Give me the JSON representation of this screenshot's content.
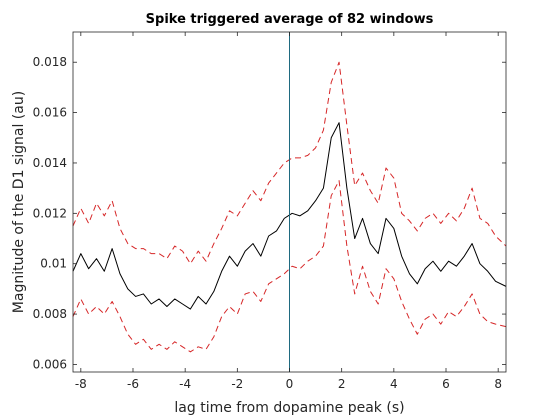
{
  "chart_data": {
    "type": "line",
    "title": "Spike triggered average of 82 windows",
    "xlabel": "lag time from dopamine peak (s)",
    "ylabel": "Magnitude of the D1 signal (au)",
    "xlim": [
      -8.3,
      8.3
    ],
    "ylim": [
      0.0057,
      0.0192
    ],
    "xticks": [
      -8,
      -6,
      -4,
      -2,
      0,
      2,
      4,
      6,
      8
    ],
    "xtick_labels": [
      "-8",
      "-6",
      "-4",
      "-2",
      "0",
      "2",
      "4",
      "6",
      "8"
    ],
    "yticks": [
      0.006,
      0.008,
      0.01,
      0.012,
      0.014,
      0.016,
      0.018
    ],
    "ytick_labels": [
      "0.006",
      "0.008",
      "0.01",
      "0.012",
      "0.014",
      "0.016",
      "0.018"
    ],
    "grid": false,
    "vline": {
      "x": 0,
      "color": "#1f6a80"
    },
    "x": [
      -8.3,
      -8.0,
      -7.7,
      -7.4,
      -7.1,
      -6.8,
      -6.5,
      -6.2,
      -5.9,
      -5.6,
      -5.3,
      -5.0,
      -4.7,
      -4.4,
      -4.1,
      -3.8,
      -3.5,
      -3.2,
      -2.9,
      -2.6,
      -2.3,
      -2.0,
      -1.7,
      -1.4,
      -1.1,
      -0.8,
      -0.5,
      -0.2,
      0.1,
      0.4,
      0.7,
      1.0,
      1.3,
      1.6,
      1.9,
      2.2,
      2.5,
      2.8,
      3.1,
      3.4,
      3.7,
      4.0,
      4.3,
      4.6,
      4.9,
      5.2,
      5.5,
      5.8,
      6.1,
      6.4,
      6.7,
      7.0,
      7.3,
      7.6,
      7.9,
      8.3
    ],
    "series": [
      {
        "style": "solid",
        "color": "#000000",
        "values": [
          0.0097,
          0.0104,
          0.0098,
          0.0102,
          0.0097,
          0.0106,
          0.0096,
          0.009,
          0.0087,
          0.0088,
          0.0084,
          0.0086,
          0.0083,
          0.0086,
          0.0084,
          0.0082,
          0.0087,
          0.0084,
          0.0089,
          0.0097,
          0.0103,
          0.0099,
          0.0105,
          0.0108,
          0.0103,
          0.0111,
          0.0113,
          0.0118,
          0.012,
          0.0119,
          0.0121,
          0.0125,
          0.013,
          0.015,
          0.0156,
          0.013,
          0.011,
          0.0118,
          0.0108,
          0.0104,
          0.0118,
          0.0114,
          0.0103,
          0.0096,
          0.0092,
          0.0098,
          0.0101,
          0.0097,
          0.0101,
          0.0099,
          0.0103,
          0.0108,
          0.01,
          0.0097,
          0.0093,
          0.0091
        ]
      },
      {
        "style": "dashed",
        "color": "#d62728",
        "values": [
          0.0115,
          0.0122,
          0.0116,
          0.0124,
          0.0119,
          0.0125,
          0.0114,
          0.0108,
          0.0106,
          0.0106,
          0.0104,
          0.0104,
          0.0102,
          0.0107,
          0.0105,
          0.01,
          0.0105,
          0.0101,
          0.0108,
          0.0114,
          0.0121,
          0.0119,
          0.0124,
          0.0129,
          0.0125,
          0.0132,
          0.0136,
          0.014,
          0.0142,
          0.0142,
          0.0143,
          0.0146,
          0.0153,
          0.0172,
          0.018,
          0.0155,
          0.0131,
          0.0136,
          0.0129,
          0.0124,
          0.0138,
          0.0134,
          0.012,
          0.0117,
          0.0113,
          0.0118,
          0.012,
          0.0116,
          0.012,
          0.0117,
          0.0122,
          0.013,
          0.0118,
          0.0116,
          0.0111,
          0.0107
        ]
      },
      {
        "style": "dashed",
        "color": "#d62728",
        "values": [
          0.0079,
          0.0086,
          0.008,
          0.0083,
          0.008,
          0.0085,
          0.0079,
          0.0072,
          0.0068,
          0.007,
          0.0066,
          0.0068,
          0.0066,
          0.0069,
          0.0067,
          0.0065,
          0.0067,
          0.0066,
          0.0071,
          0.0079,
          0.0083,
          0.008,
          0.0088,
          0.0089,
          0.0085,
          0.0092,
          0.0094,
          0.0096,
          0.0099,
          0.0098,
          0.0101,
          0.0103,
          0.0107,
          0.0127,
          0.0133,
          0.0107,
          0.0088,
          0.0099,
          0.0089,
          0.0084,
          0.0098,
          0.0094,
          0.0085,
          0.0078,
          0.0072,
          0.0078,
          0.008,
          0.0076,
          0.0081,
          0.0079,
          0.0083,
          0.0088,
          0.008,
          0.0077,
          0.0076,
          0.0075
        ]
      }
    ]
  }
}
